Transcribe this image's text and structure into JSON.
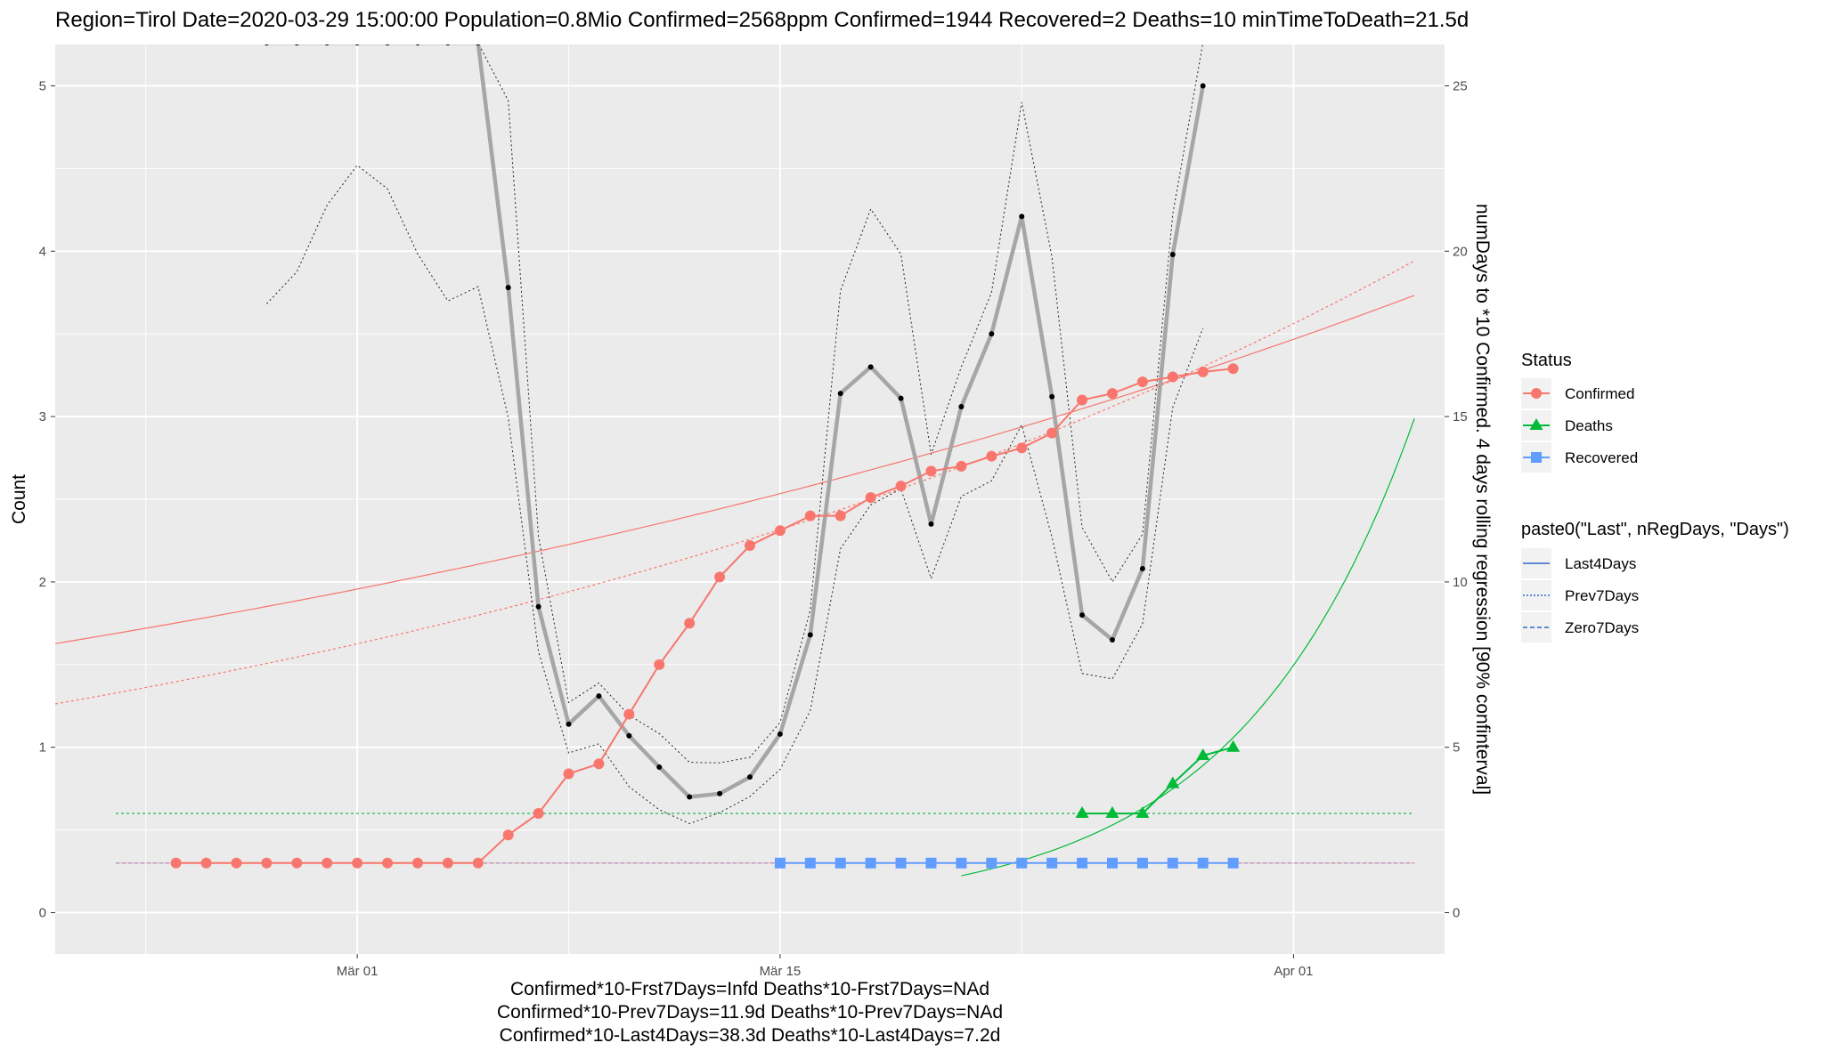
{
  "chart_data": {
    "type": "line",
    "title": "Region=Tirol Date=2020-03-29 15:00:00  Population=0.8Mio Confirmed=2568ppm  Confirmed=1944  Recovered=2 Deaths=10  minTimeToDeath=21.5d",
    "ylabel": "Count",
    "y2label": "numDays to *10 Confirmed. 4 days rolling regression [90% confinterval]",
    "caption": [
      "Confirmed*10-Frst7Days=Infd  Deaths*10-Frst7Days=NAd",
      "Confirmed*10-Prev7Days=11.9d  Deaths*10-Prev7Days=NAd",
      "Confirmed*10-Last4Days=38.3d  Deaths*10-Last4Days=7.2d"
    ],
    "xlim": [
      "2020-02-20",
      "2020-04-06"
    ],
    "ylim": [
      -0.25,
      5.25
    ],
    "y2lim": [
      -1.25,
      26.25
    ],
    "x_ticks": [
      {
        "date": "2020-03-01",
        "label": "Mär 01"
      },
      {
        "date": "2020-03-15",
        "label": "Mär 15"
      },
      {
        "date": "2020-04-01",
        "label": "Apr 01"
      }
    ],
    "y_ticks": [
      0,
      1,
      2,
      3,
      4,
      5
    ],
    "y2_ticks": [
      0,
      5,
      10,
      15,
      20,
      25
    ],
    "grid": true,
    "legends": [
      {
        "title": "Status",
        "entries": [
          {
            "label": "Confirmed",
            "color": "#F8766D",
            "shape": "circle"
          },
          {
            "label": "Deaths",
            "color": "#00BA38",
            "shape": "triangle"
          },
          {
            "label": "Recovered",
            "color": "#619CFF",
            "shape": "square"
          }
        ]
      },
      {
        "title": "paste0(\"Last\", nRegDays, \"Days\")",
        "entries": [
          {
            "label": "Last4Days",
            "color": "#3366cc",
            "dash": "solid"
          },
          {
            "label": "Prev7Days",
            "color": "#3366cc",
            "dash": "dotted"
          },
          {
            "label": "Zero7Days",
            "color": "#3366cc",
            "dash": "dashed"
          }
        ]
      }
    ],
    "series": [
      {
        "name": "Confirmed",
        "color": "#F8766D",
        "axis": "left",
        "points": [
          [
            "2020-02-24",
            0.3
          ],
          [
            "2020-02-25",
            0.3
          ],
          [
            "2020-02-26",
            0.3
          ],
          [
            "2020-02-27",
            0.3
          ],
          [
            "2020-02-28",
            0.3
          ],
          [
            "2020-02-29",
            0.3
          ],
          [
            "2020-03-01",
            0.3
          ],
          [
            "2020-03-02",
            0.3
          ],
          [
            "2020-03-03",
            0.3
          ],
          [
            "2020-03-04",
            0.3
          ],
          [
            "2020-03-05",
            0.3
          ],
          [
            "2020-03-06",
            0.47
          ],
          [
            "2020-03-07",
            0.6
          ],
          [
            "2020-03-08",
            0.84
          ],
          [
            "2020-03-09",
            0.9
          ],
          [
            "2020-03-10",
            1.2
          ],
          [
            "2020-03-11",
            1.5
          ],
          [
            "2020-03-12",
            1.75
          ],
          [
            "2020-03-13",
            2.03
          ],
          [
            "2020-03-14",
            2.22
          ],
          [
            "2020-03-15",
            2.31
          ],
          [
            "2020-03-16",
            2.4
          ],
          [
            "2020-03-17",
            2.4
          ],
          [
            "2020-03-18",
            2.51
          ],
          [
            "2020-03-19",
            2.58
          ],
          [
            "2020-03-20",
            2.67
          ],
          [
            "2020-03-21",
            2.7
          ],
          [
            "2020-03-22",
            2.76
          ],
          [
            "2020-03-23",
            2.81
          ],
          [
            "2020-03-24",
            2.9
          ],
          [
            "2020-03-25",
            3.1
          ],
          [
            "2020-03-26",
            3.14
          ],
          [
            "2020-03-27",
            3.21
          ],
          [
            "2020-03-28",
            3.24
          ],
          [
            "2020-03-29",
            3.27
          ],
          [
            "2020-03-30",
            3.29
          ]
        ]
      },
      {
        "name": "Deaths",
        "color": "#00BA38",
        "axis": "left",
        "points": [
          [
            "2020-03-25",
            0.6
          ],
          [
            "2020-03-26",
            0.6
          ],
          [
            "2020-03-27",
            0.6
          ],
          [
            "2020-03-28",
            0.78
          ],
          [
            "2020-03-29",
            0.95
          ],
          [
            "2020-03-30",
            1.0
          ]
        ]
      },
      {
        "name": "Recovered",
        "color": "#619CFF",
        "axis": "left",
        "points": [
          [
            "2020-03-15",
            0.3
          ],
          [
            "2020-03-16",
            0.3
          ],
          [
            "2020-03-17",
            0.3
          ],
          [
            "2020-03-18",
            0.3
          ],
          [
            "2020-03-19",
            0.3
          ],
          [
            "2020-03-20",
            0.3
          ],
          [
            "2020-03-21",
            0.3
          ],
          [
            "2020-03-22",
            0.3
          ],
          [
            "2020-03-23",
            0.3
          ],
          [
            "2020-03-24",
            0.3
          ],
          [
            "2020-03-25",
            0.3
          ],
          [
            "2020-03-26",
            0.3
          ],
          [
            "2020-03-27",
            0.3
          ],
          [
            "2020-03-28",
            0.3
          ],
          [
            "2020-03-29",
            0.3
          ],
          [
            "2020-03-30",
            0.3
          ]
        ]
      },
      {
        "name": "numDays",
        "color": "#000000",
        "axis": "right",
        "points": [
          [
            "2020-02-27",
            26.3
          ],
          [
            "2020-02-28",
            26.3
          ],
          [
            "2020-02-29",
            26.3
          ],
          [
            "2020-03-01",
            26.3
          ],
          [
            "2020-03-02",
            26.3
          ],
          [
            "2020-03-03",
            26.3
          ],
          [
            "2020-03-04",
            26.3
          ],
          [
            "2020-03-05",
            26.3
          ],
          [
            "2020-03-06",
            18.9
          ],
          [
            "2020-03-07",
            9.25
          ],
          [
            "2020-03-08",
            5.7
          ],
          [
            "2020-03-09",
            6.55
          ],
          [
            "2020-03-10",
            5.35
          ],
          [
            "2020-03-11",
            4.4
          ],
          [
            "2020-03-12",
            3.5
          ],
          [
            "2020-03-13",
            3.6
          ],
          [
            "2020-03-14",
            4.1
          ],
          [
            "2020-03-15",
            5.4
          ],
          [
            "2020-03-16",
            8.4
          ],
          [
            "2020-03-17",
            15.7
          ],
          [
            "2020-03-18",
            16.5
          ],
          [
            "2020-03-19",
            15.55
          ],
          [
            "2020-03-20",
            11.75
          ],
          [
            "2020-03-21",
            15.3
          ],
          [
            "2020-03-22",
            17.5
          ],
          [
            "2020-03-23",
            21.05
          ],
          [
            "2020-03-24",
            15.6
          ],
          [
            "2020-03-25",
            9.0
          ],
          [
            "2020-03-26",
            8.25
          ],
          [
            "2020-03-27",
            10.4
          ],
          [
            "2020-03-28",
            19.9
          ],
          [
            "2020-03-29",
            25.0
          ]
        ]
      }
    ]
  }
}
